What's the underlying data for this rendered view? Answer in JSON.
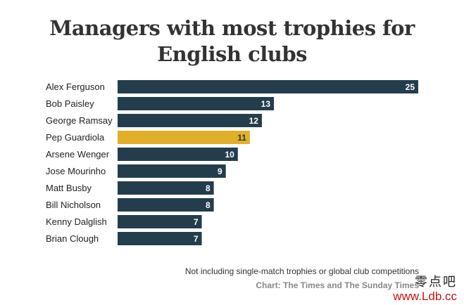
{
  "title_line1": "Managers with most trophies for",
  "title_line2": "English clubs",
  "note": "Not including single-match trophies or global club competitions",
  "source": "Chart: The Times and The Sunday Times",
  "watermark": {
    "line1": "零点吧",
    "line2": "www.Ldb.cc"
  },
  "colors": {
    "default_bar": "#233d4d",
    "highlight_bar": "#e2b028",
    "default_label": "#ffffff",
    "highlight_label": "#333333"
  },
  "chart_data": {
    "type": "bar",
    "orientation": "horizontal",
    "categories": [
      "Alex Ferguson",
      "Bob Paisley",
      "George Ramsay",
      "Pep Guardiola",
      "Arsene Wenger",
      "Jose Mourinho",
      "Matt Busby",
      "Bill Nicholson",
      "Kenny Dalglish",
      "Brian Clough"
    ],
    "values": [
      25,
      13,
      12,
      11,
      10,
      9,
      8,
      8,
      7,
      7
    ],
    "highlight": "Pep Guardiola",
    "title": "Managers with most trophies for English clubs",
    "xlim": [
      0,
      25
    ],
    "grid": false,
    "legend": false
  }
}
